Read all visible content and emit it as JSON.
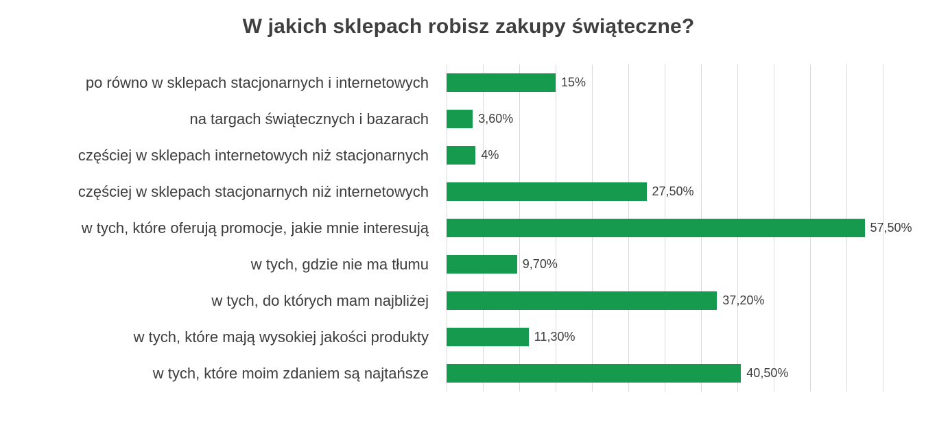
{
  "chart_data": {
    "type": "bar",
    "orientation": "horizontal",
    "title": "W jakich sklepach robisz zakupy świąteczne?",
    "categories": [
      "po równo w sklepach stacjonarnych i internetowych",
      "na targach świątecznych i bazarach",
      "częściej w sklepach internetowych niż stacjonarnych",
      "częściej w sklepach stacjonarnych niż internetowych",
      "w tych, które oferują promocje, jakie mnie interesują",
      "w tych, gdzie nie ma tłumu",
      "w tych, do których mam najbliżej",
      "w tych, które mają wysokiej jakości produkty",
      "w tych, które moim zdaniem są najtańsze"
    ],
    "values": [
      15,
      3.6,
      4,
      27.5,
      57.5,
      9.7,
      37.2,
      11.3,
      40.5
    ],
    "value_labels": [
      "15%",
      "3,60%",
      "4%",
      "27,50%",
      "57,50%",
      "9,70%",
      "37,20%",
      "11,30%",
      "40,50%"
    ],
    "xlabel": "",
    "ylabel": "",
    "xlim": [
      0,
      60
    ],
    "gridline_step": 5,
    "grid": true,
    "legend": false,
    "bar_color": "#169b4e",
    "grid_color": "#d9d9d9",
    "title_color": "#3f3f3f",
    "label_color": "#3d3d3d",
    "background": "#ffffff"
  }
}
